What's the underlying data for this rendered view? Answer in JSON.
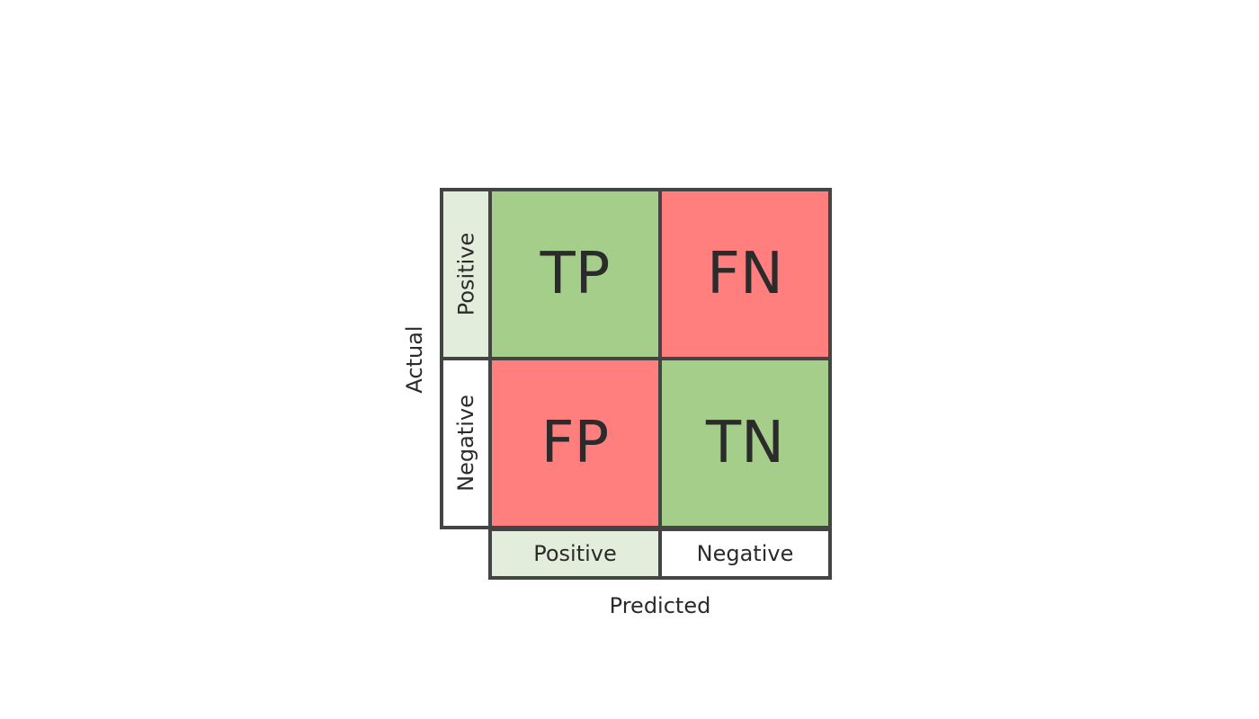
{
  "axes": {
    "actual": "Actual",
    "predicted": "Predicted"
  },
  "rows": {
    "positive": "Positive",
    "negative": "Negative"
  },
  "columns": {
    "positive": "Positive",
    "negative": "Negative"
  },
  "cells": {
    "tp": "TP",
    "fn": "FN",
    "fp": "FP",
    "tn": "TN"
  },
  "colors": {
    "correct": "#a5ce8b",
    "incorrect": "#ff7f7f",
    "positive_header": "#e2eedb",
    "negative_header": "#ffffff",
    "border": "#444444"
  }
}
